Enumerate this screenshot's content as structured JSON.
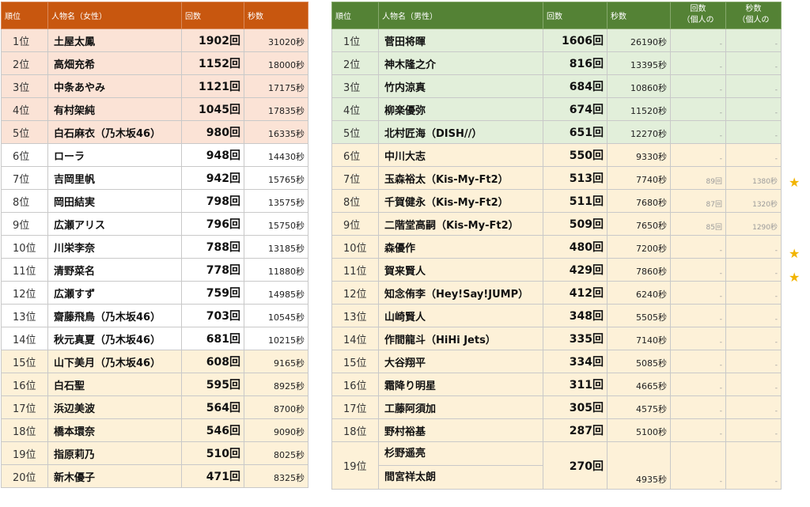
{
  "female": {
    "headers": [
      "順位",
      "人物名（女性）",
      "回数",
      "秒数"
    ],
    "rows": [
      {
        "rank": "1位",
        "name": "土屋太鳳",
        "count": "1902回",
        "seconds": "31020秒",
        "tone": "pink"
      },
      {
        "rank": "2位",
        "name": "高畑充希",
        "count": "1152回",
        "seconds": "18000秒",
        "tone": "pink"
      },
      {
        "rank": "3位",
        "name": "中条あやみ",
        "count": "1121回",
        "seconds": "17175秒",
        "tone": "pink"
      },
      {
        "rank": "4位",
        "name": "有村架純",
        "count": "1045回",
        "seconds": "17835秒",
        "tone": "pink"
      },
      {
        "rank": "5位",
        "name": "白石麻衣（乃木坂46）",
        "count": "980回",
        "seconds": "16335秒",
        "tone": "pink"
      },
      {
        "rank": "6位",
        "name": "ローラ",
        "count": "948回",
        "seconds": "14430秒",
        "tone": "white"
      },
      {
        "rank": "7位",
        "name": "吉岡里帆",
        "count": "942回",
        "seconds": "15765秒",
        "tone": "white"
      },
      {
        "rank": "8位",
        "name": "岡田結実",
        "count": "798回",
        "seconds": "13575秒",
        "tone": "white"
      },
      {
        "rank": "9位",
        "name": "広瀬アリス",
        "count": "796回",
        "seconds": "15750秒",
        "tone": "white"
      },
      {
        "rank": "10位",
        "name": "川栄李奈",
        "count": "788回",
        "seconds": "13185秒",
        "tone": "white"
      },
      {
        "rank": "11位",
        "name": "清野菜名",
        "count": "778回",
        "seconds": "11880秒",
        "tone": "white"
      },
      {
        "rank": "12位",
        "name": "広瀬すず",
        "count": "759回",
        "seconds": "14985秒",
        "tone": "white"
      },
      {
        "rank": "13位",
        "name": "齋藤飛鳥（乃木坂46）",
        "count": "703回",
        "seconds": "10545秒",
        "tone": "white"
      },
      {
        "rank": "14位",
        "name": "秋元真夏（乃木坂46）",
        "count": "681回",
        "seconds": "10215秒",
        "tone": "white"
      },
      {
        "rank": "15位",
        "name": "山下美月（乃木坂46）",
        "count": "608回",
        "seconds": "9165秒",
        "tone": "cream"
      },
      {
        "rank": "16位",
        "name": "白石聖",
        "count": "595回",
        "seconds": "8925秒",
        "tone": "cream"
      },
      {
        "rank": "17位",
        "name": "浜辺美波",
        "count": "564回",
        "seconds": "8700秒",
        "tone": "cream"
      },
      {
        "rank": "18位",
        "name": "橋本環奈",
        "count": "546回",
        "seconds": "9090秒",
        "tone": "cream"
      },
      {
        "rank": "19位",
        "name": "指原莉乃",
        "count": "510回",
        "seconds": "8025秒",
        "tone": "cream"
      },
      {
        "rank": "20位",
        "name": "新木優子",
        "count": "471回",
        "seconds": "8325秒",
        "tone": "cream"
      }
    ]
  },
  "male": {
    "headers": [
      "順位",
      "人物名（男性）",
      "回数",
      "秒数",
      "回数\n（個人の",
      "秒数\n（個人の"
    ],
    "star": "★",
    "rows": [
      {
        "rank": "1位",
        "name": "菅田将暉",
        "count": "1606回",
        "seconds": "26190秒",
        "ind_count": "-",
        "ind_seconds": "-",
        "tone": "green"
      },
      {
        "rank": "2位",
        "name": "神木隆之介",
        "count": "816回",
        "seconds": "13395秒",
        "ind_count": "-",
        "ind_seconds": "-",
        "tone": "green"
      },
      {
        "rank": "3位",
        "name": "竹内涼真",
        "count": "684回",
        "seconds": "10860秒",
        "ind_count": "-",
        "ind_seconds": "-",
        "tone": "green"
      },
      {
        "rank": "4位",
        "name": "柳楽優弥",
        "count": "674回",
        "seconds": "11520秒",
        "ind_count": "-",
        "ind_seconds": "-",
        "tone": "green"
      },
      {
        "rank": "5位",
        "name": "北村匠海（DISH//）",
        "count": "651回",
        "seconds": "12270秒",
        "ind_count": "-",
        "ind_seconds": "-",
        "tone": "green"
      },
      {
        "rank": "6位",
        "name": "中川大志",
        "count": "550回",
        "seconds": "9330秒",
        "ind_count": "-",
        "ind_seconds": "-",
        "tone": "cream"
      },
      {
        "rank": "7位",
        "name": "玉森裕太（Kis-My-Ft2）",
        "count": "513回",
        "seconds": "7740秒",
        "ind_count": "89回",
        "ind_seconds": "1380秒",
        "tone": "cream",
        "starred": true
      },
      {
        "rank": "8位",
        "name": "千賀健永（Kis-My-Ft2）",
        "count": "511回",
        "seconds": "7680秒",
        "ind_count": "87回",
        "ind_seconds": "1320秒",
        "tone": "cream"
      },
      {
        "rank": "9位",
        "name": "二階堂高嗣（Kis-My-Ft2）",
        "count": "509回",
        "seconds": "7650秒",
        "ind_count": "85回",
        "ind_seconds": "1290秒",
        "tone": "cream"
      },
      {
        "rank": "10位",
        "name": "森優作",
        "count": "480回",
        "seconds": "7200秒",
        "ind_count": "-",
        "ind_seconds": "-",
        "tone": "cream",
        "starred": true
      },
      {
        "rank": "11位",
        "name": "賀来賢人",
        "count": "429回",
        "seconds": "7860秒",
        "ind_count": "-",
        "ind_seconds": "-",
        "tone": "cream",
        "starred": true
      },
      {
        "rank": "12位",
        "name": "知念侑李（Hey!Say!JUMP）",
        "count": "412回",
        "seconds": "6240秒",
        "ind_count": "-",
        "ind_seconds": "-",
        "tone": "cream"
      },
      {
        "rank": "13位",
        "name": "山崎賢人",
        "count": "348回",
        "seconds": "5505秒",
        "ind_count": "-",
        "ind_seconds": "-",
        "tone": "cream"
      },
      {
        "rank": "14位",
        "name": "作間龍斗（HiHi Jets）",
        "count": "335回",
        "seconds": "7140秒",
        "ind_count": "-",
        "ind_seconds": "-",
        "tone": "cream"
      },
      {
        "rank": "15位",
        "name": "大谷翔平",
        "count": "334回",
        "seconds": "5085秒",
        "ind_count": "-",
        "ind_seconds": "-",
        "tone": "cream"
      },
      {
        "rank": "16位",
        "name": "霜降り明星",
        "count": "311回",
        "seconds": "4665秒",
        "ind_count": "-",
        "ind_seconds": "-",
        "tone": "cream"
      },
      {
        "rank": "17位",
        "name": "工藤阿須加",
        "count": "305回",
        "seconds": "4575秒",
        "ind_count": "-",
        "ind_seconds": "-",
        "tone": "cream"
      },
      {
        "rank": "18位",
        "name": "野村裕基",
        "count": "287回",
        "seconds": "5100秒",
        "ind_count": "-",
        "ind_seconds": "-",
        "tone": "cream"
      },
      {
        "rank": "19位",
        "names": [
          "杉野遥亮",
          "間宮祥太朗"
        ],
        "count": "270回",
        "seconds": "4935秒",
        "ind_count": "-",
        "ind_seconds": "-",
        "tone": "cream"
      }
    ]
  }
}
